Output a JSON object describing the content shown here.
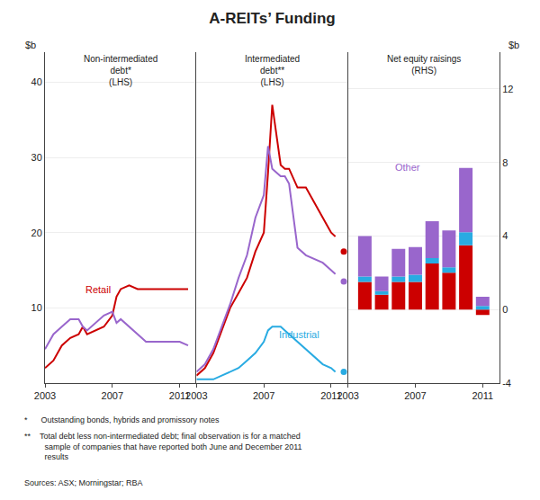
{
  "title": "A-REITs’ Funding",
  "annotations": [
    "*      Outstanding bonds, hybrids and promissory notes",
    "**    Total debt less non-intermediated debt; final observation is for a matched\n         sample of companies that have reported both June and December 2011\n         results",
    "Sources: ASX; Morningstar; RBA"
  ],
  "chart_data": [
    {
      "type": "line",
      "title": "Non-intermediated\ndebt*\n(LHS)",
      "ylabel": "$b",
      "x": [
        2003,
        2003.5,
        2004,
        2004.5,
        2005,
        2005.25,
        2005.5,
        2006,
        2006.5,
        2007,
        2007.25,
        2007.5,
        2008,
        2008.5,
        2009,
        2009.5,
        2010,
        2010.5,
        2011,
        2011.5
      ],
      "series": [
        {
          "color": "#cc0000",
          "values": [
            2.0,
            3.0,
            5.0,
            6.0,
            6.5,
            7.5,
            6.5,
            7.0,
            7.5,
            9.0,
            11.5,
            12.5,
            13.0,
            12.5,
            12.5,
            12.5,
            12.5,
            12.5,
            12.5,
            12.5
          ]
        },
        {
          "color": "#9966cc",
          "values": [
            4.5,
            6.5,
            7.5,
            8.5,
            8.5,
            7.5,
            7.0,
            8.0,
            9.0,
            9.5,
            8.0,
            8.5,
            7.5,
            6.5,
            5.5,
            5.5,
            5.5,
            5.5,
            5.5,
            5.0
          ]
        }
      ],
      "xlim": [
        2003,
        2012
      ],
      "xticks": [
        2003,
        2007,
        2011
      ],
      "ylim": [
        0,
        44
      ],
      "yticks": [
        10,
        20,
        30,
        40
      ],
      "grid": true,
      "annotations": [
        {
          "text": "Retail",
          "color": "#cc0000"
        }
      ]
    },
    {
      "type": "line",
      "title": "Intermediated\ndebt**\n(LHS)",
      "x": [
        2003,
        2003.5,
        2004,
        2004.5,
        2005,
        2005.5,
        2006,
        2006.5,
        2007,
        2007.25,
        2007.5,
        2008,
        2008.25,
        2008.5,
        2009,
        2009.5,
        2010,
        2010.5,
        2011,
        2011.25
      ],
      "series": [
        {
          "color": "#cc0000",
          "values": [
            1.0,
            2.0,
            4.0,
            7.0,
            10.0,
            12.0,
            14.0,
            17.5,
            20.0,
            28.0,
            37.0,
            29.0,
            28.5,
            28.5,
            26.0,
            26.0,
            24.0,
            22.0,
            20.0,
            19.5
          ]
        },
        {
          "color": "#9966cc",
          "values": [
            1.5,
            2.5,
            4.5,
            7.5,
            10.5,
            14.0,
            17.0,
            22.0,
            25.0,
            31.5,
            28.5,
            27.5,
            27.5,
            26.5,
            18.0,
            17.0,
            16.5,
            16.0,
            15.0,
            14.5
          ]
        },
        {
          "color": "#29abe2",
          "values": [
            0.5,
            0.5,
            0.5,
            1.0,
            1.5,
            2.0,
            3.0,
            4.0,
            5.5,
            7.0,
            7.5,
            7.5,
            7.0,
            6.5,
            5.5,
            4.5,
            3.5,
            2.5,
            2.0,
            1.5
          ]
        },
        {
          "type": "scatter",
          "marker": "circle",
          "color": "#cc0000",
          "x": [
            2011.75
          ],
          "values": [
            17.5
          ]
        },
        {
          "type": "scatter",
          "marker": "circle",
          "color": "#9966cc",
          "x": [
            2011.75
          ],
          "values": [
            13.5
          ]
        },
        {
          "type": "scatter",
          "marker": "circle",
          "color": "#29abe2",
          "x": [
            2011.75
          ],
          "values": [
            1.5
          ]
        }
      ],
      "xlim": [
        2003,
        2012
      ],
      "xticks": [
        2003,
        2007,
        2011
      ],
      "ylim": [
        0,
        44
      ],
      "yticks": [
        10,
        20,
        30,
        40
      ],
      "tick_labels": "x",
      "grid": true,
      "annotations": [
        {
          "text": "Industrial",
          "color": "#29abe2"
        }
      ]
    },
    {
      "type": "bar",
      "stacked": true,
      "title": "Net equity raisings\n(RHS)",
      "y2label": "$b",
      "x": [
        2004,
        2005,
        2006,
        2007,
        2008,
        2009,
        2010,
        2011
      ],
      "series": [
        {
          "color": "#cc0000",
          "axis": "y2",
          "values": [
            1.5,
            0.8,
            1.5,
            1.5,
            2.5,
            2.0,
            3.5,
            -0.3
          ]
        },
        {
          "color": "#29abe2",
          "axis": "y2",
          "values": [
            0.3,
            0.2,
            0.3,
            0.4,
            0.3,
            0.3,
            0.7,
            0.2
          ]
        },
        {
          "color": "#9966cc",
          "axis": "y2",
          "values": [
            2.2,
            0.8,
            1.5,
            1.5,
            2.0,
            2.0,
            3.5,
            0.5
          ]
        }
      ],
      "xlim": [
        2003,
        2012
      ],
      "xticks": [
        2003,
        2007,
        2011
      ],
      "y2lim": [
        -4,
        14
      ],
      "y2ticks": [
        -4,
        0,
        4,
        8,
        12
      ],
      "grid": true,
      "annotations": [
        {
          "text": "Other",
          "color": "#9966cc"
        }
      ]
    }
  ]
}
